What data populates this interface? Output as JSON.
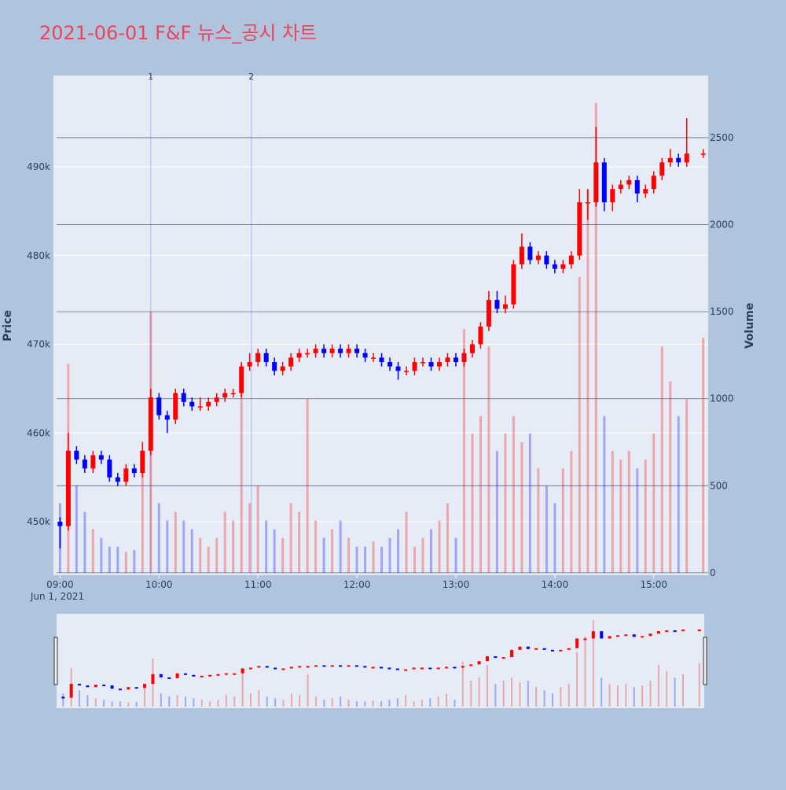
{
  "chart_data": {
    "type": "candlestick",
    "title": "2021-06-01 F&F 뉴스_공시 차트",
    "y_label": "Price",
    "y2_label": "Volume",
    "x_date_label": "Jun 1, 2021",
    "x": [
      "2021-06-01 09:00",
      "2021-06-01 09:05",
      "2021-06-01 09:10",
      "2021-06-01 09:15",
      "2021-06-01 09:20",
      "2021-06-01 09:25",
      "2021-06-01 09:30",
      "2021-06-01 09:35",
      "2021-06-01 09:40",
      "2021-06-01 09:45",
      "2021-06-01 09:50",
      "2021-06-01 09:55",
      "2021-06-01 10:00",
      "2021-06-01 10:05",
      "2021-06-01 10:10",
      "2021-06-01 10:15",
      "2021-06-01 10:20",
      "2021-06-01 10:25",
      "2021-06-01 10:30",
      "2021-06-01 10:35",
      "2021-06-01 10:40",
      "2021-06-01 10:45",
      "2021-06-01 10:50",
      "2021-06-01 10:55",
      "2021-06-01 11:00",
      "2021-06-01 11:05",
      "2021-06-01 11:10",
      "2021-06-01 11:15",
      "2021-06-01 11:20",
      "2021-06-01 11:25",
      "2021-06-01 11:30",
      "2021-06-01 11:35",
      "2021-06-01 11:40",
      "2021-06-01 11:45",
      "2021-06-01 11:50",
      "2021-06-01 11:55",
      "2021-06-01 12:00",
      "2021-06-01 12:05",
      "2021-06-01 12:10",
      "2021-06-01 12:15",
      "2021-06-01 12:20",
      "2021-06-01 12:25",
      "2021-06-01 12:30",
      "2021-06-01 12:35",
      "2021-06-01 12:40",
      "2021-06-01 12:45",
      "2021-06-01 12:50",
      "2021-06-01 12:55",
      "2021-06-01 13:00",
      "2021-06-01 13:05",
      "2021-06-01 13:10",
      "2021-06-01 13:15",
      "2021-06-01 13:20",
      "2021-06-01 13:25",
      "2021-06-01 13:30",
      "2021-06-01 13:35",
      "2021-06-01 13:40",
      "2021-06-01 13:45",
      "2021-06-01 13:50",
      "2021-06-01 13:55",
      "2021-06-01 14:00",
      "2021-06-01 14:05",
      "2021-06-01 14:10",
      "2021-06-01 14:15",
      "2021-06-01 14:20",
      "2021-06-01 14:25",
      "2021-06-01 14:30",
      "2021-06-01 14:35",
      "2021-06-01 14:40",
      "2021-06-01 14:45",
      "2021-06-01 14:50",
      "2021-06-01 14:55",
      "2021-06-01 15:00",
      "2021-06-01 15:05",
      "2021-06-01 15:10",
      "2021-06-01 15:15",
      "2021-06-01 15:20",
      "2021-06-01 15:30"
    ],
    "open": [
      450000,
      449500,
      458000,
      457000,
      456000,
      457500,
      457000,
      455000,
      454500,
      456000,
      455500,
      458000,
      464000,
      462000,
      461500,
      464500,
      463500,
      463000,
      463000,
      463500,
      464000,
      464500,
      464500,
      467500,
      468000,
      469000,
      468000,
      467000,
      467500,
      468500,
      469000,
      469000,
      469500,
      469000,
      469500,
      469000,
      469500,
      469000,
      468500,
      468500,
      468000,
      467500,
      467000,
      467000,
      468000,
      468000,
      467500,
      468000,
      468500,
      468000,
      469000,
      470000,
      472000,
      475000,
      474000,
      474500,
      479000,
      481000,
      479500,
      480000,
      479000,
      478500,
      479000,
      480000,
      486000,
      486000,
      490500,
      486000,
      487500,
      488000,
      488500,
      487000,
      487500,
      489000,
      490500,
      491000,
      490500,
      491500
    ],
    "high": [
      450500,
      460000,
      458500,
      457500,
      458000,
      458000,
      457500,
      455500,
      456500,
      456500,
      459000,
      465000,
      464500,
      462500,
      465000,
      465000,
      464000,
      464000,
      464000,
      464500,
      465000,
      465000,
      468000,
      469000,
      469500,
      469500,
      468500,
      468000,
      469000,
      469500,
      469500,
      470000,
      470000,
      470000,
      470000,
      470000,
      470000,
      469500,
      469000,
      469000,
      468500,
      468000,
      467500,
      468500,
      468500,
      468500,
      468500,
      469000,
      469000,
      469500,
      470500,
      472500,
      476000,
      476000,
      475500,
      479500,
      482500,
      481500,
      480500,
      480500,
      479500,
      479500,
      480500,
      487500,
      487500,
      494500,
      491000,
      488000,
      488500,
      489000,
      489000,
      488000,
      489500,
      491000,
      492000,
      491500,
      495500,
      492000
    ],
    "low": [
      447000,
      449000,
      456500,
      455500,
      455500,
      456500,
      454500,
      454000,
      454000,
      455000,
      455000,
      457500,
      461500,
      460000,
      461000,
      463000,
      462500,
      462500,
      462500,
      463000,
      463500,
      464000,
      464000,
      467000,
      467500,
      467500,
      466500,
      466500,
      467000,
      468000,
      468500,
      468500,
      468500,
      468500,
      468500,
      468500,
      468500,
      468000,
      468000,
      467500,
      467000,
      466000,
      466500,
      466500,
      467500,
      467000,
      467000,
      467500,
      467500,
      467500,
      468500,
      469500,
      471500,
      473500,
      473500,
      474000,
      478500,
      479000,
      479000,
      478500,
      478000,
      478000,
      478500,
      479500,
      484000,
      485500,
      485000,
      485000,
      487000,
      487500,
      486000,
      486500,
      487000,
      488500,
      490000,
      490000,
      490000,
      491000
    ],
    "close": [
      449500,
      458000,
      457000,
      456000,
      457500,
      457000,
      455000,
      454500,
      456000,
      455500,
      458000,
      464000,
      462000,
      461500,
      464500,
      463500,
      463000,
      463000,
      463500,
      464000,
      464500,
      464500,
      467500,
      468000,
      469000,
      468000,
      467000,
      467500,
      468500,
      469000,
      469000,
      469500,
      469000,
      469500,
      469000,
      469500,
      469000,
      468500,
      468500,
      468000,
      467500,
      467000,
      467000,
      468000,
      468000,
      467500,
      468000,
      468500,
      468000,
      469000,
      470000,
      472000,
      475000,
      474000,
      474500,
      479000,
      481000,
      479500,
      480000,
      479000,
      478500,
      479000,
      480000,
      486000,
      486000,
      490500,
      486000,
      487500,
      488000,
      488500,
      487000,
      487500,
      489000,
      490500,
      491000,
      490500,
      491500,
      491500
    ],
    "volume": [
      400,
      1200,
      500,
      350,
      250,
      200,
      150,
      150,
      120,
      130,
      600,
      1500,
      400,
      300,
      350,
      300,
      250,
      200,
      150,
      200,
      350,
      300,
      1200,
      400,
      500,
      300,
      250,
      200,
      400,
      350,
      1000,
      300,
      200,
      250,
      300,
      200,
      150,
      150,
      180,
      150,
      200,
      250,
      350,
      150,
      200,
      250,
      300,
      400,
      200,
      1400,
      800,
      900,
      1300,
      700,
      800,
      900,
      750,
      800,
      600,
      500,
      400,
      600,
      700,
      1700,
      2200,
      2700,
      900,
      700,
      650,
      700,
      600,
      650,
      800,
      1300,
      1100,
      900,
      1000,
      1350
    ],
    "up_color": "#ff0000",
    "down_color": "#0000ff",
    "title_color": "#e8455d",
    "xlim": [
      "2021-06-01 08:56",
      "2021-06-01 15:33"
    ],
    "xticks": [
      {
        "value": "2021-06-01 09:00",
        "label": "09:00"
      },
      {
        "value": "2021-06-01 10:00",
        "label": "10:00"
      },
      {
        "value": "2021-06-01 11:00",
        "label": "11:00"
      },
      {
        "value": "2021-06-01 12:00",
        "label": "12:00"
      },
      {
        "value": "2021-06-01 13:00",
        "label": "13:00"
      },
      {
        "value": "2021-06-01 14:00",
        "label": "14:00"
      },
      {
        "value": "2021-06-01 15:00",
        "label": "15:00"
      }
    ],
    "ylim": [
      443970,
      500290
    ],
    "yticks": [
      {
        "value": 450000,
        "label": "450k"
      },
      {
        "value": 460000,
        "label": "460k"
      },
      {
        "value": 470000,
        "label": "470k"
      },
      {
        "value": 480000,
        "label": "480k"
      },
      {
        "value": 490000,
        "label": "490k"
      }
    ],
    "y2lim": [
      -14,
      2857
    ],
    "y2ticks": [
      0,
      500,
      1000,
      1500,
      2000,
      2500
    ],
    "annotations": [
      {
        "x": "2021-06-01 09:55",
        "label": "1"
      },
      {
        "x": "2021-06-01 10:56",
        "label": "2"
      }
    ],
    "grid": true,
    "range_slider": true
  }
}
